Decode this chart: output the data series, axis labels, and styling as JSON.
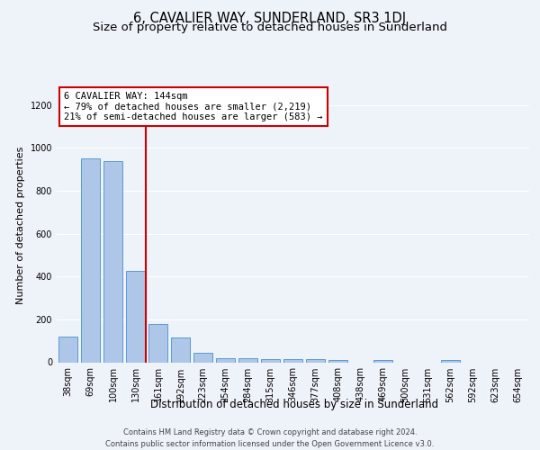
{
  "title": "6, CAVALIER WAY, SUNDERLAND, SR3 1DJ",
  "subtitle": "Size of property relative to detached houses in Sunderland",
  "xlabel": "Distribution of detached houses by size in Sunderland",
  "ylabel": "Number of detached properties",
  "categories": [
    "38sqm",
    "69sqm",
    "100sqm",
    "130sqm",
    "161sqm",
    "192sqm",
    "223sqm",
    "254sqm",
    "284sqm",
    "315sqm",
    "346sqm",
    "377sqm",
    "408sqm",
    "438sqm",
    "469sqm",
    "500sqm",
    "531sqm",
    "562sqm",
    "592sqm",
    "623sqm",
    "654sqm"
  ],
  "values": [
    120,
    950,
    940,
    425,
    180,
    115,
    45,
    20,
    20,
    15,
    15,
    15,
    10,
    0,
    10,
    0,
    0,
    10,
    0,
    0,
    0
  ],
  "bar_color": "#aec6e8",
  "bar_edge_color": "#5b9bd5",
  "annotation_line1": "6 CAVALIER WAY: 144sqm",
  "annotation_line2": "← 79% of detached houses are smaller (2,219)",
  "annotation_line3": "21% of semi-detached houses are larger (583) →",
  "annotation_box_color": "#ffffff",
  "annotation_box_edge_color": "#cc0000",
  "vline_color": "#cc0000",
  "ylim": [
    0,
    1280
  ],
  "yticks": [
    0,
    200,
    400,
    600,
    800,
    1000,
    1200
  ],
  "background_color": "#eef2f9",
  "grid_color": "#ffffff",
  "footer": "Contains HM Land Registry data © Crown copyright and database right 2024.\nContains public sector information licensed under the Open Government Licence v3.0.",
  "title_fontsize": 10.5,
  "subtitle_fontsize": 9.5,
  "xlabel_fontsize": 8.5,
  "ylabel_fontsize": 8,
  "tick_fontsize": 7,
  "annotation_fontsize": 7.5,
  "footer_fontsize": 6
}
